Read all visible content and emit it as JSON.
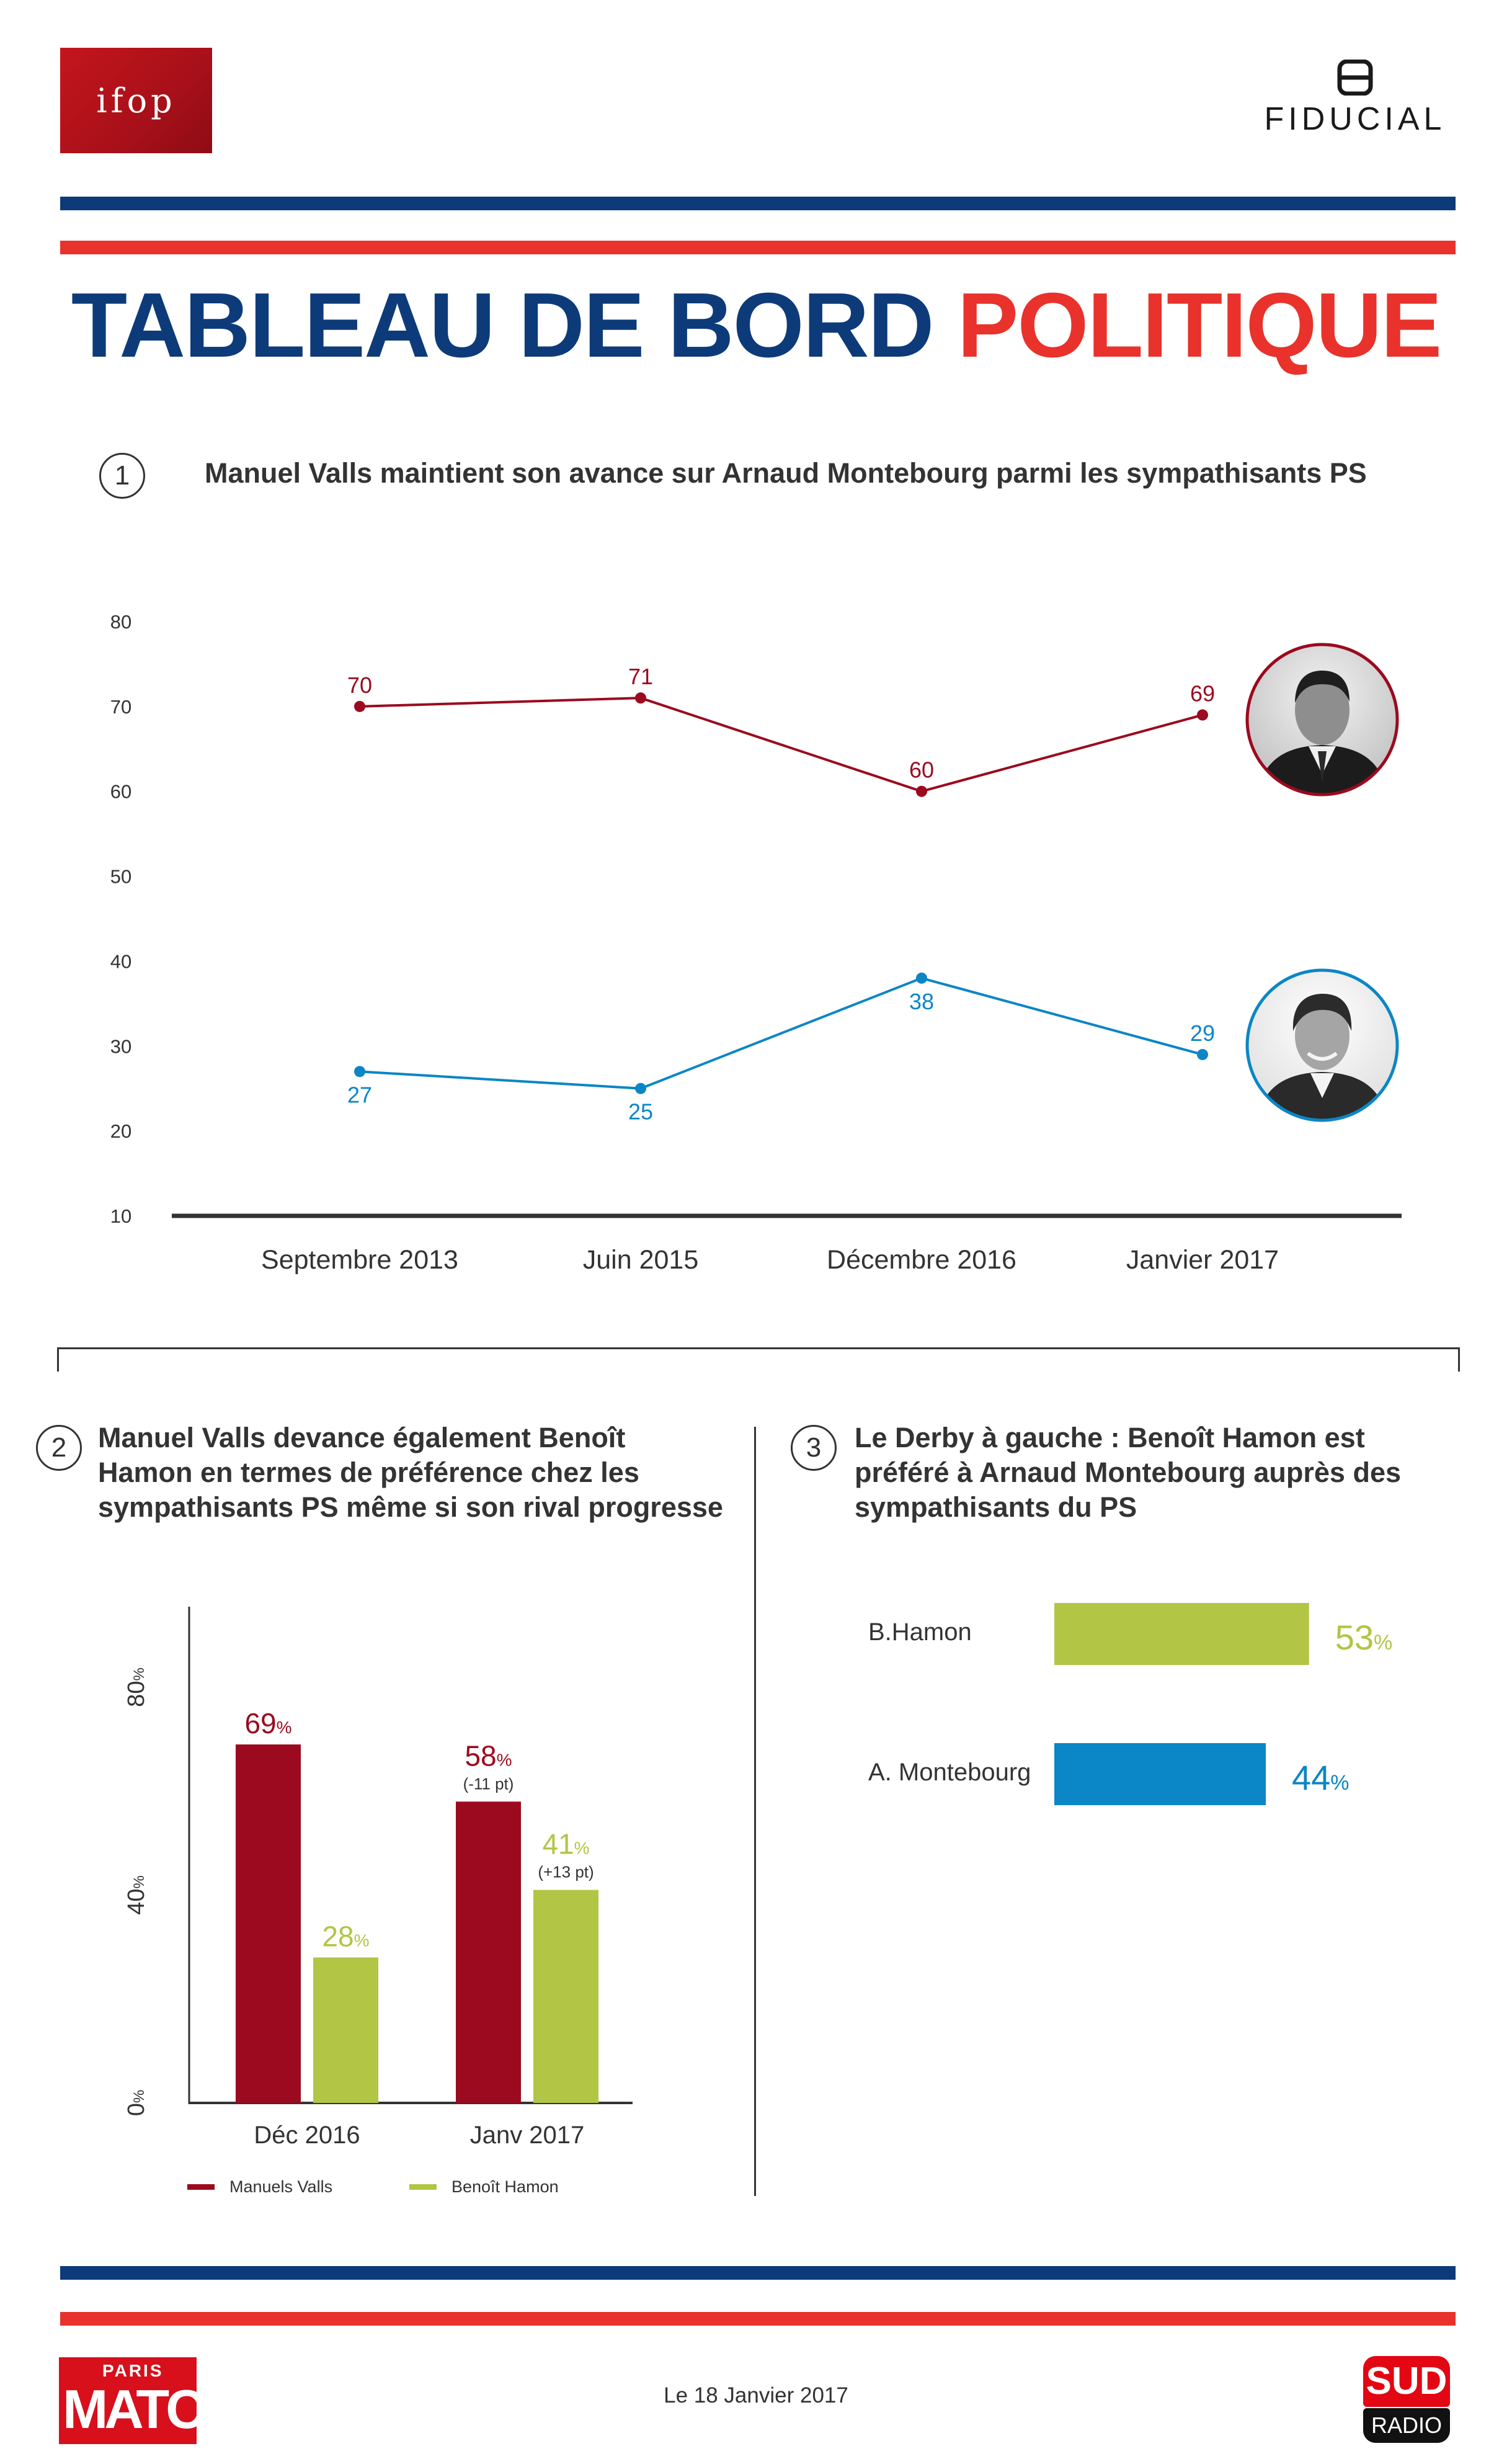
{
  "logos": {
    "ifop": "ifop",
    "fiducial": "FIDUCIAL",
    "paris_match_top": "PARIS",
    "paris_match_main": "MATCH",
    "sud_radio_top": "SUD",
    "sud_radio_bottom": "RADIO"
  },
  "colors": {
    "navy": "#0d3b7a",
    "red": "#e8322b",
    "valls": "#9b0a1e",
    "montebourg": "#0b86c6",
    "hamon": "#b2c545"
  },
  "header": {
    "title_part1": "TABLEAU DE BORD",
    "title_part2": "POLITIQUE"
  },
  "section1": {
    "number": "1",
    "title": "Manuel Valls maintient son avance sur Arnaud Montebourg parmi les sympathisants PS"
  },
  "section2": {
    "number": "2",
    "title_lines": [
      "Manuel Valls devance également Benoît",
      "Hamon en termes de préférence chez les",
      "sympathisants PS même si son rival progresse"
    ]
  },
  "section3": {
    "number": "3",
    "title_lines": [
      "Le Derby à gauche : Benoît Hamon est",
      "préféré à  Arnaud Montebourg auprès des",
      "sympathisants du PS"
    ]
  },
  "footer": {
    "date": "Le 18 Janvier 2017"
  },
  "chart_data": [
    {
      "type": "line",
      "title": "Manuel Valls maintient son avance sur Arnaud Montebourg parmi les sympathisants PS",
      "categories": [
        "Septembre 2013",
        "Juin 2015",
        "Décembre 2016",
        "Janvier 2017"
      ],
      "yticks": [
        "80",
        "70",
        "60",
        "50",
        "40",
        "30",
        "20",
        "10"
      ],
      "ylim": [
        10,
        80
      ],
      "grid": false,
      "series": [
        {
          "values": [
            70,
            71,
            60,
            69
          ],
          "labels": [
            "70",
            "71",
            "60",
            "69"
          ],
          "color": "#9b0a1e",
          "avatar": "portrait-valls"
        },
        {
          "values": [
            27,
            25,
            38,
            29
          ],
          "labels": [
            "27",
            "25",
            "38",
            "29"
          ],
          "color": "#0b86c6",
          "avatar": "portrait-montebourg"
        }
      ]
    },
    {
      "type": "bar",
      "categories": [
        "Déc 2016",
        "Janv 2017"
      ],
      "yticks": [
        {
          "value": 0,
          "label": "0",
          "unit": "%"
        },
        {
          "value": 40,
          "label": "40",
          "unit": "%"
        },
        {
          "value": 80,
          "label": "80",
          "unit": "%"
        }
      ],
      "ylim": [
        0,
        80
      ],
      "unit": "%",
      "series": [
        {
          "name": "Manuels Valls",
          "color": "#9b0a1e",
          "values": [
            69,
            58
          ],
          "labels": [
            "69",
            "58"
          ],
          "changes": [
            "",
            "(-11 pt)"
          ]
        },
        {
          "name": "Benoît Hamon",
          "color": "#b2c545",
          "values": [
            28,
            41
          ],
          "labels": [
            "28",
            "41"
          ],
          "changes": [
            "",
            "(+13 pt)"
          ]
        }
      ],
      "legend": "bottom"
    },
    {
      "type": "bar",
      "orientation": "horizontal",
      "categories": [
        "B.Hamon",
        "A. Montebourg"
      ],
      "values": [
        53,
        44
      ],
      "labels": [
        "53",
        "44"
      ],
      "unit": "%",
      "colors": [
        "#b2c545",
        "#0b86c6"
      ]
    }
  ]
}
